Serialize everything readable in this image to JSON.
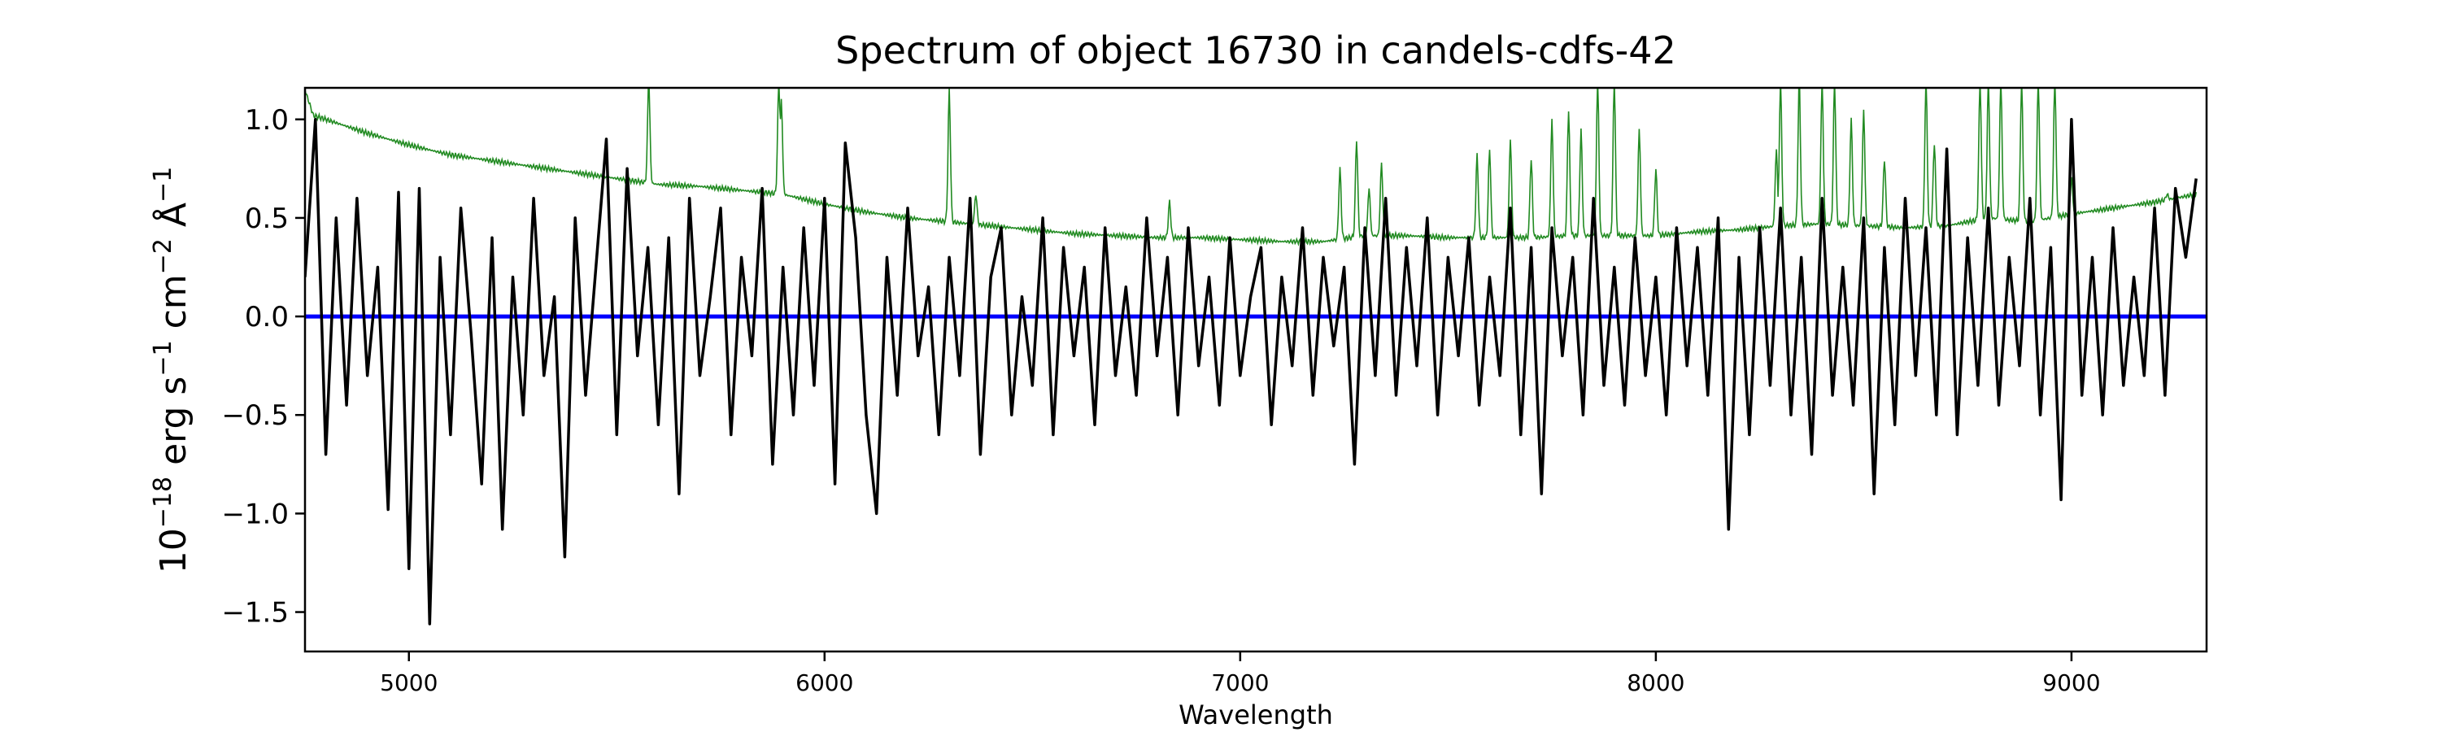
{
  "chart_data": {
    "type": "line",
    "title": "Spectrum of object 16730 in candels-cdfs-42",
    "xlabel": "Wavelength",
    "ylabel_base": "10",
    "ylabel_exp": "−18",
    "ylabel_units": " erg s",
    "ylabel_s_exp": "−1",
    "ylabel_cm": " cm",
    "ylabel_cm_exp": "−2",
    "ylabel_A": " Å",
    "ylabel_A_exp": "−1",
    "xlim": [
      4750,
      9325
    ],
    "ylim": [
      -1.7,
      1.16
    ],
    "xticks": [
      5000,
      6000,
      7000,
      8000,
      9000
    ],
    "xtick_labels": [
      "5000",
      "6000",
      "7000",
      "8000",
      "9000"
    ],
    "yticks": [
      -1.5,
      -1.0,
      -0.5,
      0.0,
      0.5,
      1.0
    ],
    "ytick_labels": [
      "−1.5",
      "−1.0",
      "−0.5",
      "0.0",
      "0.5",
      "1.0"
    ],
    "grid": false,
    "colors": {
      "flux": "#000000",
      "error": "#228b22",
      "zero": "#0000ff"
    },
    "zero_line": 0.0,
    "flux": {
      "x_start": 4750,
      "x_step": 25,
      "values": [
        0.2,
        1.0,
        -0.7,
        0.5,
        -0.45,
        0.6,
        -0.3,
        0.25,
        -0.98,
        0.63,
        -1.28,
        0.65,
        -1.56,
        0.3,
        -0.6,
        0.55,
        -0.1,
        -0.85,
        0.4,
        -1.08,
        0.2,
        -0.5,
        0.6,
        -0.3,
        0.1,
        -1.22,
        0.5,
        -0.4,
        0.25,
        0.9,
        -0.6,
        0.75,
        -0.2,
        0.35,
        -0.55,
        0.4,
        -0.9,
        0.6,
        -0.3,
        0.1,
        0.55,
        -0.6,
        0.3,
        -0.2,
        0.65,
        -0.75,
        0.25,
        -0.5,
        0.45,
        -0.35,
        0.6,
        -0.85,
        0.88,
        0.4,
        -0.5,
        -1.0,
        0.3,
        -0.4,
        0.55,
        -0.2,
        0.15,
        -0.6,
        0.3,
        -0.3,
        0.6,
        -0.7,
        0.2,
        0.45,
        -0.5,
        0.1,
        -0.35,
        0.5,
        -0.6,
        0.35,
        -0.2,
        0.25,
        -0.55,
        0.45,
        -0.3,
        0.15,
        -0.4,
        0.5,
        -0.2,
        0.3,
        -0.5,
        0.45,
        -0.25,
        0.2,
        -0.45,
        0.4,
        -0.3,
        0.1,
        0.35,
        -0.55,
        0.2,
        -0.25,
        0.45,
        -0.4,
        0.3,
        -0.15,
        0.25,
        -0.75,
        0.45,
        -0.3,
        0.6,
        -0.4,
        0.35,
        -0.25,
        0.5,
        -0.5,
        0.3,
        -0.2,
        0.4,
        -0.45,
        0.2,
        -0.3,
        0.55,
        -0.6,
        0.35,
        -0.9,
        0.45,
        -0.2,
        0.3,
        -0.5,
        0.6,
        -0.35,
        0.25,
        -0.45,
        0.4,
        -0.3,
        0.2,
        -0.5,
        0.45,
        -0.25,
        0.35,
        -0.4,
        0.5,
        -1.08,
        0.3,
        -0.6,
        0.45,
        -0.35,
        0.55,
        -0.5,
        0.3,
        -0.7,
        0.6,
        -0.4,
        0.25,
        -0.45,
        0.5,
        -0.9,
        0.35,
        -0.55,
        0.6,
        -0.3,
        0.45,
        -0.5,
        0.85,
        -0.6,
        0.4,
        -0.35,
        0.55,
        -0.45,
        0.3,
        -0.25,
        0.6,
        -0.5,
        0.35,
        -0.93,
        1.0,
        -0.4,
        0.3,
        -0.5,
        0.45,
        -0.35,
        0.2,
        -0.3,
        0.55,
        -0.4,
        0.65,
        0.3,
        0.7
      ]
    },
    "error": {
      "baseline_x": [
        4750,
        4770,
        4800,
        4900,
        5000,
        5100,
        5200,
        5300,
        5400,
        5500,
        5600,
        5700,
        5800,
        5900,
        6000,
        6100,
        6200,
        6300,
        6400,
        6500,
        6600,
        6700,
        6800,
        6900,
        7000,
        7100,
        7200,
        7300,
        7400,
        7500,
        7600,
        7700,
        7800,
        7900,
        8000,
        8100,
        8200,
        8300,
        8400,
        8500,
        8600,
        8700,
        8800,
        8900,
        9000,
        9100,
        9200,
        9300
      ],
      "baseline_y": [
        1.15,
        1.02,
        1.0,
        0.93,
        0.87,
        0.82,
        0.79,
        0.76,
        0.73,
        0.7,
        0.67,
        0.66,
        0.64,
        0.62,
        0.57,
        0.53,
        0.5,
        0.48,
        0.46,
        0.44,
        0.42,
        0.41,
        0.4,
        0.4,
        0.39,
        0.38,
        0.38,
        0.41,
        0.41,
        0.4,
        0.4,
        0.4,
        0.41,
        0.41,
        0.41,
        0.43,
        0.44,
        0.46,
        0.47,
        0.46,
        0.45,
        0.46,
        0.5,
        0.48,
        0.52,
        0.55,
        0.58,
        0.62
      ],
      "lines_x": [
        5577,
        5890,
        5896,
        6300,
        6364,
        6830,
        7240,
        7280,
        7310,
        7340,
        7570,
        7600,
        7650,
        7700,
        7750,
        7790,
        7820,
        7860,
        7900,
        7960,
        8000,
        8290,
        8300,
        8345,
        8400,
        8430,
        8470,
        8500,
        8550,
        8650,
        8670,
        8780,
        8800,
        8830,
        8880,
        8920,
        8960,
        9000,
        9230
      ],
      "lines_y": [
        1.2,
        1.2,
        1.1,
        1.15,
        0.62,
        0.58,
        0.75,
        0.9,
        0.65,
        0.78,
        0.82,
        0.85,
        0.9,
        0.8,
        1.0,
        1.05,
        0.95,
        1.2,
        1.2,
        0.95,
        0.75,
        0.85,
        1.2,
        1.2,
        1.2,
        1.2,
        1.0,
        1.05,
        0.8,
        1.2,
        0.88,
        1.2,
        1.2,
        1.2,
        1.2,
        1.2,
        1.2,
        0.7,
        0.62
      ]
    }
  }
}
